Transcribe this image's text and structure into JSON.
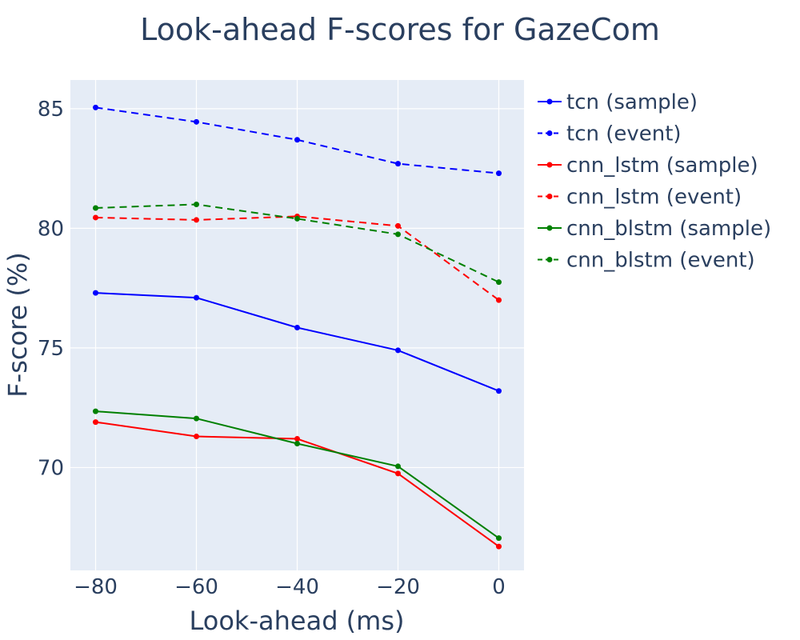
{
  "chart_data": {
    "type": "line",
    "title": "Look-ahead F-scores for GazeCom",
    "xlabel": "Look-ahead (ms)",
    "ylabel": "F-score (%)",
    "x": [
      -80,
      -60,
      -40,
      -20,
      0
    ],
    "xlim": [
      -85,
      5
    ],
    "ylim": [
      65.7,
      86.2
    ],
    "xticks": [
      -80,
      -60,
      -40,
      -20,
      0
    ],
    "xtick_labels": [
      "−80",
      "−60",
      "−40",
      "−20",
      "0"
    ],
    "yticks": [
      70,
      75,
      80,
      85
    ],
    "ytick_labels": [
      "70",
      "75",
      "80",
      "85"
    ],
    "grid": true,
    "legend_position": "right",
    "series": [
      {
        "name": "tcn (sample)",
        "color": "#0000ff",
        "dash": "solid",
        "values": [
          77.3,
          77.1,
          75.85,
          74.9,
          73.2
        ]
      },
      {
        "name": "tcn (event)",
        "color": "#0000ff",
        "dash": "dash",
        "values": [
          85.05,
          84.45,
          83.7,
          82.7,
          82.3
        ]
      },
      {
        "name": "cnn_lstm (sample)",
        "color": "#ff0000",
        "dash": "solid",
        "values": [
          71.9,
          71.3,
          71.2,
          69.75,
          66.7
        ]
      },
      {
        "name": "cnn_lstm (event)",
        "color": "#ff0000",
        "dash": "dash",
        "values": [
          80.45,
          80.35,
          80.5,
          80.1,
          77.0
        ]
      },
      {
        "name": "cnn_blstm (sample)",
        "color": "#008000",
        "dash": "solid",
        "values": [
          72.35,
          72.05,
          71.0,
          70.05,
          67.05
        ]
      },
      {
        "name": "cnn_blstm (event)",
        "color": "#008000",
        "dash": "dash",
        "values": [
          80.85,
          81.0,
          80.4,
          79.75,
          77.75
        ]
      }
    ]
  }
}
